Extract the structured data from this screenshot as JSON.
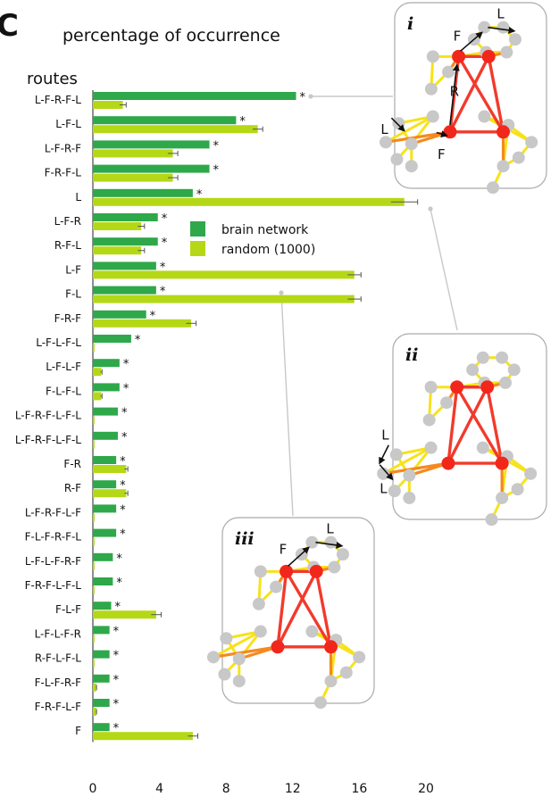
{
  "panel_letter": "C",
  "colors": {
    "brain": "#2ea84a",
    "random": "#b5d816",
    "edge_red": "#f23a2c",
    "edge_orange": "#f5891f",
    "edge_yellow": "#f7e21a",
    "node_gray": "#c8c8c8",
    "node_red": "#f2271b",
    "leader": "#c8c8c8"
  },
  "chart_data": {
    "type": "bar",
    "orientation": "horizontal",
    "title": "percentage of occurrence",
    "ylabel": "routes",
    "xlim": [
      0,
      20
    ],
    "xticks": [
      0,
      4,
      8,
      12,
      16,
      20
    ],
    "categories": [
      "L-F-R-F-L",
      "L-F-L",
      "L-F-R-F",
      "F-R-F-L",
      "L",
      "L-F-R",
      "R-F-L",
      "L-F",
      "F-L",
      "F-R-F",
      "L-F-L-F-L",
      "L-F-L-F",
      "F-L-F-L",
      "L-F-R-F-L-F-L",
      "L-F-R-F-L-F-L",
      "F-R",
      "R-F",
      "L-F-R-F-L-F",
      "F-L-F-R-F-L",
      "L-F-L-F-R-F",
      "F-R-F-L-F-L",
      "F-L-F",
      "L-F-L-F-R",
      "R-F-L-F-L",
      "F-L-F-R-F",
      "F-R-F-L-F",
      "F"
    ],
    "significance": [
      "*",
      "*",
      "*",
      "*",
      "*",
      "*",
      "*",
      "*",
      "*",
      "*",
      "*",
      "*",
      "*",
      "*",
      "*",
      "*",
      "*",
      "*",
      "*",
      "*",
      "*",
      "*",
      "*",
      "*",
      "*",
      "*",
      "*"
    ],
    "series": [
      {
        "name": "brain network",
        "values": [
          12.2,
          8.6,
          7.0,
          7.0,
          6.0,
          3.9,
          3.9,
          3.8,
          3.8,
          3.2,
          2.3,
          1.6,
          1.6,
          1.5,
          1.5,
          1.4,
          1.4,
          1.4,
          1.4,
          1.2,
          1.2,
          1.1,
          1.0,
          1.0,
          1.0,
          1.0,
          1.0
        ]
      },
      {
        "name": "random (1000)",
        "values": [
          1.8,
          9.9,
          4.8,
          4.8,
          18.7,
          2.9,
          2.9,
          15.7,
          15.7,
          5.9,
          0.1,
          0.5,
          0.5,
          0.1,
          0.1,
          2.0,
          2.0,
          0.1,
          0.1,
          0.1,
          0.1,
          3.8,
          0.1,
          0.1,
          0.2,
          0.2,
          6.0
        ]
      }
    ],
    "errors_random": [
      0.2,
      0.3,
      0.3,
      0.3,
      0.8,
      0.2,
      0.2,
      0.4,
      0.4,
      0.3,
      0,
      0.05,
      0.05,
      0,
      0,
      0.1,
      0.1,
      0,
      0,
      0,
      0,
      0.3,
      0,
      0,
      0.02,
      0.02,
      0.3
    ],
    "legend": {
      "placement": "center-right",
      "entries": [
        "brain network",
        "random (1000)"
      ]
    }
  },
  "insets": [
    {
      "label": "i",
      "route_letters": [
        "L",
        "F",
        "R",
        "F",
        "L"
      ],
      "route": "L-F-R-F-L"
    },
    {
      "label": "ii",
      "route_letters": [
        "L",
        "L"
      ],
      "route": "L"
    },
    {
      "label": "iii",
      "route_letters": [
        "L",
        "F"
      ],
      "route": "F-L"
    }
  ]
}
